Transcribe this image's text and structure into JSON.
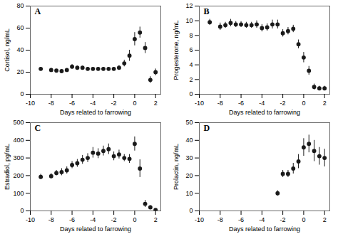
{
  "chart_data": [
    {
      "type": "scatter",
      "title": "A",
      "ylabel": "Cortisol, ng/mL",
      "xlabel": "Days related to farrowing",
      "color": "#1a1a1a",
      "marker": "circle",
      "xlim": [
        -10,
        2.5
      ],
      "xticks": [
        -10,
        -8,
        -6,
        -4,
        -2,
        0,
        2
      ],
      "ylim": [
        0,
        80
      ],
      "yticks": [
        0,
        20,
        40,
        60,
        80
      ],
      "x": [
        -9,
        -8,
        -7.5,
        -7,
        -6.5,
        -6,
        -5.5,
        -5,
        -4.5,
        -4,
        -3.5,
        -3,
        -2.5,
        -2,
        -1.5,
        -1,
        -0.5,
        0,
        0.5,
        1,
        1.5,
        2
      ],
      "values": [
        23,
        22,
        21.5,
        21,
        22,
        25,
        24,
        24,
        23,
        23,
        23,
        23,
        23,
        23,
        24,
        28,
        35,
        50,
        56,
        42,
        13,
        20
      ],
      "yerr": [
        1.5,
        1.5,
        1,
        1,
        1,
        2,
        1.5,
        1.5,
        1.5,
        1.5,
        1.5,
        1.5,
        1.5,
        1.5,
        2,
        3,
        5,
        6,
        5,
        5,
        3,
        3
      ]
    },
    {
      "type": "scatter",
      "title": "B",
      "ylabel": "Progesterone, ng/mL",
      "xlabel": "Days related to farrowing",
      "color": "#1a1a1a",
      "marker": "circle",
      "xlim": [
        -10,
        2.5
      ],
      "xticks": [
        -10,
        -8,
        -6,
        -4,
        -2,
        0,
        2
      ],
      "ylim": [
        0,
        12
      ],
      "yticks": [
        0,
        2,
        4,
        6,
        8,
        10,
        12
      ],
      "x": [
        -9,
        -8,
        -7.5,
        -7,
        -6.5,
        -6,
        -5.5,
        -5,
        -4.5,
        -4,
        -3.5,
        -3,
        -2.5,
        -2,
        -1.5,
        -1,
        -0.5,
        0,
        0.5,
        1,
        1.5,
        2
      ],
      "values": [
        9.8,
        9.2,
        9.4,
        9.7,
        9.5,
        9.5,
        9.4,
        9.4,
        9.5,
        9.0,
        9.1,
        9.5,
        9.5,
        8.3,
        8.6,
        8.9,
        6.8,
        5.0,
        3.2,
        1.0,
        0.8,
        0.8
      ],
      "yerr": [
        0.4,
        0.5,
        0.4,
        0.5,
        0.4,
        0.4,
        0.4,
        0.4,
        0.5,
        0.5,
        0.5,
        0.6,
        0.6,
        0.5,
        0.5,
        0.5,
        0.6,
        0.7,
        0.6,
        0.4,
        0.3,
        0.3
      ]
    },
    {
      "type": "scatter",
      "title": "C",
      "ylabel": "Estradiol, pg/mL",
      "xlabel": "Days related to farrowing",
      "color": "#1a1a1a",
      "marker": "circle",
      "xlim": [
        -10,
        2.5
      ],
      "xticks": [
        -10,
        -8,
        -6,
        -4,
        -2,
        0,
        2
      ],
      "ylim": [
        0,
        500
      ],
      "yticks": [
        0,
        100,
        200,
        300,
        400,
        500
      ],
      "x": [
        -9,
        -8,
        -7.5,
        -7,
        -6.5,
        -6,
        -5.5,
        -5,
        -4.5,
        -4,
        -3.5,
        -3,
        -2.5,
        -2,
        -1.5,
        -1,
        -0.5,
        0,
        0.5,
        1,
        1.5,
        2
      ],
      "values": [
        193,
        197,
        215,
        220,
        230,
        260,
        270,
        290,
        300,
        330,
        325,
        340,
        350,
        310,
        320,
        300,
        295,
        380,
        240,
        40,
        20,
        5
      ],
      "yerr": [
        15,
        15,
        15,
        20,
        20,
        20,
        22,
        25,
        25,
        30,
        28,
        28,
        30,
        25,
        25,
        20,
        25,
        40,
        50,
        20,
        10,
        5
      ]
    },
    {
      "type": "scatter",
      "title": "D",
      "ylabel": "Prolactin, ng/mL",
      "xlabel": "Days related to farrowing",
      "color": "#1a1a1a",
      "marker": "circle",
      "xlim": [
        -10,
        2.5
      ],
      "xticks": [
        -10,
        -8,
        -6,
        -4,
        -2,
        0,
        2
      ],
      "ylim": [
        0,
        50
      ],
      "yticks": [
        0,
        10,
        20,
        30,
        40,
        50
      ],
      "x": [
        -2.5,
        -2,
        -1.5,
        -1,
        -0.5,
        0,
        0.5,
        1,
        1.5,
        2
      ],
      "values": [
        10,
        21,
        21,
        24,
        28,
        36,
        38,
        34,
        31,
        30
      ],
      "yerr": [
        1.5,
        2,
        2,
        3,
        4,
        5,
        5,
        6,
        5,
        5
      ]
    }
  ]
}
